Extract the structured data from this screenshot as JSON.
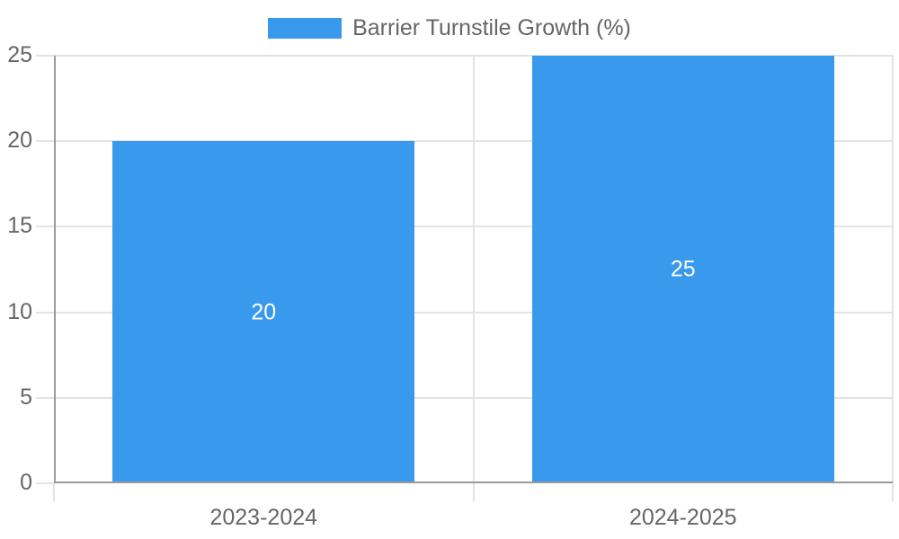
{
  "legend": {
    "position": "top-center",
    "items": [
      {
        "label": "Barrier Turnstile Growth (%)",
        "color": "#3999ec"
      }
    ]
  },
  "chart_data": {
    "type": "bar",
    "title": "Barrier Turnstile Growth (%)",
    "categories": [
      "2023-2024",
      "2024-2025"
    ],
    "series": [
      {
        "name": "Barrier Turnstile Growth (%)",
        "values": [
          20,
          25
        ]
      }
    ],
    "values": [
      20,
      25
    ],
    "value_labels": [
      "20",
      "25"
    ],
    "value_label_position": "center-of-bar",
    "xlabel": "",
    "ylabel": "",
    "ylim": [
      0,
      25
    ],
    "yticks": [
      0,
      5,
      10,
      15,
      20,
      25
    ],
    "grid": true,
    "bar_percentage_of_category": 0.72
  },
  "colors": {
    "bar": "#3999ec",
    "grid_line": "#e3e3e3",
    "axis_border": "#9a9a9a",
    "tick_text": "#666666",
    "value_text": "#ffffff",
    "background": "#ffffff"
  }
}
